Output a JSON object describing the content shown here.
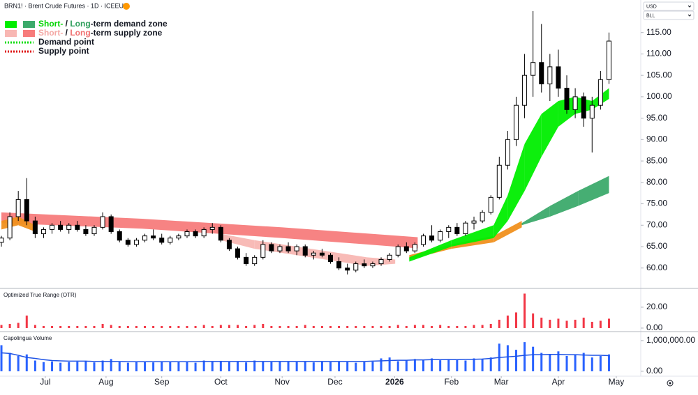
{
  "header": {
    "symbol_line": "BRN1! · Brent Crude Futures · 1D · ICEEUR",
    "currency": "USD",
    "unit": "BLL"
  },
  "chart_data": [
    {
      "type": "candlestick",
      "up_color": "#ffffff",
      "down_color": "#000000",
      "legend": [
        {
          "parts": [
            {
              "text": "Short-",
              "color": "#00d400"
            },
            {
              "text": " / "
            },
            {
              "text": "Long",
              "color": "#2e9e5b"
            },
            {
              "text": "-term demand zone"
            }
          ],
          "swatches": [
            "#00ee00",
            "#3caa6b"
          ],
          "style": "box"
        },
        {
          "parts": [
            {
              "text": "Short-",
              "color": "#f4a8a4"
            },
            {
              "text": " / "
            },
            {
              "text": "Long",
              "color": "#f07070"
            },
            {
              "text": "-term supply zone"
            }
          ],
          "swatches": [
            "#f8b7b3",
            "#f77c7c"
          ],
          "style": "box"
        },
        {
          "parts": [
            {
              "text": "Demand point"
            }
          ],
          "swatches": [
            "#00dd00"
          ],
          "style": "dotted"
        },
        {
          "parts": [
            {
              "text": "Supply point"
            }
          ],
          "swatches": [
            "#dd0000"
          ],
          "style": "dotted"
        }
      ],
      "x": [
        0,
        3,
        6,
        9,
        12,
        15,
        18,
        21,
        24,
        27,
        30,
        33,
        36,
        39,
        42,
        45,
        48,
        51,
        54,
        57,
        60,
        63,
        66,
        69,
        72,
        75,
        78,
        81,
        84,
        87,
        90,
        93,
        96,
        99,
        102,
        105,
        108,
        111,
        114,
        117,
        120,
        123,
        126,
        129,
        132,
        135,
        138,
        141,
        144,
        147,
        150,
        153,
        156,
        159,
        162,
        165,
        168,
        171,
        174,
        177,
        180,
        183,
        186,
        189,
        192,
        195,
        198,
        201,
        204,
        207,
        210,
        213,
        216
      ],
      "ohlc": [
        [
          66,
          67.5,
          65,
          67
        ],
        [
          67,
          73,
          66.5,
          72
        ],
        [
          72,
          78,
          71,
          76
        ],
        [
          76,
          81,
          70,
          71
        ],
        [
          71,
          72,
          67,
          68
        ],
        [
          68,
          69.5,
          67,
          69
        ],
        [
          69,
          70.5,
          68,
          70
        ],
        [
          70,
          71,
          68.5,
          69
        ],
        [
          69,
          70.5,
          68,
          70
        ],
        [
          70,
          71,
          68.5,
          69
        ],
        [
          69,
          70,
          67.5,
          68
        ],
        [
          68,
          70,
          67.5,
          69.5
        ],
        [
          69.5,
          73,
          69,
          72
        ],
        [
          72,
          72.5,
          68,
          68.5
        ],
        [
          68.5,
          69,
          66,
          66.5
        ],
        [
          66.5,
          67,
          65,
          65.5
        ],
        [
          65.5,
          67,
          65,
          66.5
        ],
        [
          66.5,
          68,
          66,
          67.5
        ],
        [
          67.5,
          69,
          66.5,
          67
        ],
        [
          67,
          68,
          65.5,
          66
        ],
        [
          66,
          67.5,
          65.5,
          67
        ],
        [
          67,
          68,
          66.5,
          67.5
        ],
        [
          67.5,
          69,
          67,
          68.5
        ],
        [
          68.5,
          69,
          67,
          67.5
        ],
        [
          67.5,
          69.5,
          67,
          69
        ],
        [
          69,
          70.5,
          68,
          69.5
        ],
        [
          69.5,
          70,
          66,
          66.5
        ],
        [
          66.5,
          67,
          64,
          64.5
        ],
        [
          64.5,
          65,
          62,
          62.5
        ],
        [
          62.5,
          63.5,
          60.5,
          61
        ],
        [
          61,
          63,
          60.5,
          62.5
        ],
        [
          62.5,
          66.5,
          62,
          65.5
        ],
        [
          65.5,
          66,
          63.5,
          64
        ],
        [
          64,
          65.5,
          63.5,
          65
        ],
        [
          65,
          66,
          63.5,
          64
        ],
        [
          64,
          65.5,
          63,
          65
        ],
        [
          65,
          65.5,
          62.5,
          63
        ],
        [
          63,
          64,
          62,
          63.5
        ],
        [
          63.5,
          64.5,
          62.5,
          63
        ],
        [
          63,
          63.5,
          61,
          61.5
        ],
        [
          61.5,
          62.5,
          59.5,
          60
        ],
        [
          60,
          61,
          58.5,
          59.5
        ],
        [
          59.5,
          61.5,
          59,
          61
        ],
        [
          61,
          62,
          60,
          60.5
        ],
        [
          60.5,
          61.5,
          60,
          61
        ],
        [
          61,
          62.5,
          60.5,
          62
        ],
        [
          62,
          63.5,
          61.5,
          63
        ],
        [
          63,
          65.5,
          62.5,
          65
        ],
        [
          65,
          66,
          63.5,
          64
        ],
        [
          64,
          66,
          63.5,
          65.5
        ],
        [
          65.5,
          68,
          65,
          67.5
        ],
        [
          67.5,
          70,
          66,
          66.5
        ],
        [
          66.5,
          69,
          66,
          68.5
        ],
        [
          68.5,
          70,
          67,
          69.5
        ],
        [
          69.5,
          70.5,
          67.5,
          68
        ],
        [
          68,
          71,
          67.5,
          70.5
        ],
        [
          70.5,
          72,
          69,
          71
        ],
        [
          71,
          73.5,
          70.5,
          73
        ],
        [
          73,
          77,
          72.5,
          76.5
        ],
        [
          76.5,
          86,
          76,
          84
        ],
        [
          84,
          92,
          83,
          90
        ],
        [
          90,
          100,
          88.5,
          98
        ],
        [
          98,
          110,
          95,
          105
        ],
        [
          105,
          120,
          100,
          108
        ],
        [
          108,
          117,
          101,
          103
        ],
        [
          103,
          110,
          99,
          107
        ],
        [
          107,
          111,
          100,
          102
        ],
        [
          102,
          105,
          96,
          97
        ],
        [
          97,
          102,
          95,
          100
        ],
        [
          100,
          101,
          93,
          95
        ],
        [
          95,
          100,
          87,
          98
        ],
        [
          98,
          106,
          97,
          104
        ],
        [
          104,
          115,
          103,
          113
        ]
      ],
      "zones": [
        {
          "color": "#f77c7c",
          "x": [
            0,
            50,
            100,
            148
          ],
          "lower": [
            70.5,
            69.2,
            67,
            64.6
          ],
          "upper": [
            73,
            71.5,
            69.5,
            67.2
          ]
        },
        {
          "color": "#f8b7b3",
          "x": [
            78,
            90,
            110,
            130,
            140
          ],
          "lower": [
            66.5,
            64.5,
            62.5,
            60.5,
            61
          ],
          "upper": [
            68,
            66.5,
            64.5,
            62.5,
            62
          ]
        },
        {
          "color": "#f0901e",
          "x": [
            0,
            6,
            12
          ],
          "lower": [
            69,
            70,
            68.5
          ],
          "upper": [
            71,
            72,
            70
          ]
        },
        {
          "color": "#f0901e",
          "x": [
            145,
            160,
            175,
            185
          ],
          "lower": [
            62,
            64.5,
            66,
            69.5
          ],
          "upper": [
            63,
            65.5,
            67.5,
            71
          ]
        },
        {
          "color": "#00ee00",
          "x": [
            145,
            160,
            175,
            180,
            186,
            192,
            198,
            204,
            210,
            216
          ],
          "lower": [
            61.5,
            65,
            67,
            71,
            78,
            86,
            93,
            96,
            97,
            99.5
          ],
          "upper": [
            62.5,
            66.5,
            70,
            77,
            89,
            96,
            99,
            100,
            99,
            102
          ]
        },
        {
          "color": "#3caa6b",
          "x": [
            185,
            195,
            205,
            216
          ],
          "lower": [
            70,
            72,
            74.5,
            77.5
          ],
          "upper": [
            70.5,
            74.5,
            78,
            81.5
          ]
        }
      ],
      "xlim": [
        -0.5,
        227.3
      ],
      "xticks": [
        {
          "value": 15.6,
          "label": "Jul"
        },
        {
          "value": 37.2,
          "label": "Aug"
        },
        {
          "value": 57,
          "label": "Sep"
        },
        {
          "value": 78,
          "label": "Oct"
        },
        {
          "value": 99.8,
          "label": "Nov"
        },
        {
          "value": 118.6,
          "label": "Dec"
        },
        {
          "value": 139.8,
          "label": "2026"
        },
        {
          "value": 160,
          "label": "Feb"
        },
        {
          "value": 177.7,
          "label": "Mar"
        },
        {
          "value": 198,
          "label": "Apr"
        },
        {
          "value": 218.6,
          "label": "May"
        }
      ],
      "ylim": [
        55.4,
        122.6
      ],
      "yticks": [
        {
          "value": 60,
          "label": "60.00"
        },
        {
          "value": 65,
          "label": "65.00"
        },
        {
          "value": 70,
          "label": "70.00"
        },
        {
          "value": 75,
          "label": "75.00"
        },
        {
          "value": 80,
          "label": "80.00"
        },
        {
          "value": 85,
          "label": "85.00"
        },
        {
          "value": 90,
          "label": "90.00"
        },
        {
          "value": 95,
          "label": "95.00"
        },
        {
          "value": 100,
          "label": "100.00"
        },
        {
          "value": 105,
          "label": "105.00"
        },
        {
          "value": 110,
          "label": "110.00"
        },
        {
          "value": 115,
          "label": "115.00"
        }
      ]
    },
    {
      "type": "bar",
      "title": "Optimized True Range (OTR)",
      "color": "#f23645",
      "x": [
        0,
        3,
        6,
        9,
        12,
        15,
        18,
        21,
        24,
        27,
        30,
        33,
        36,
        39,
        42,
        45,
        48,
        51,
        54,
        57,
        60,
        63,
        66,
        69,
        72,
        75,
        78,
        81,
        84,
        87,
        90,
        93,
        96,
        99,
        102,
        105,
        108,
        111,
        114,
        117,
        120,
        123,
        126,
        129,
        132,
        135,
        138,
        141,
        144,
        147,
        150,
        153,
        156,
        159,
        162,
        165,
        168,
        171,
        174,
        177,
        180,
        183,
        186,
        189,
        192,
        195,
        198,
        201,
        204,
        207,
        210,
        213,
        216
      ],
      "values": [
        3,
        4,
        5,
        12,
        3,
        2,
        2,
        2,
        2,
        2,
        2,
        2,
        4,
        3,
        2,
        2,
        2,
        2,
        2,
        2,
        2,
        2,
        2,
        2,
        3,
        2,
        3,
        3,
        3,
        2,
        3,
        4,
        2,
        2,
        2,
        2,
        3,
        2,
        2,
        2,
        2,
        2,
        2,
        2,
        2,
        2,
        2,
        3,
        2,
        3,
        3,
        2,
        3,
        2,
        2,
        2,
        3,
        3,
        4,
        8,
        12,
        15,
        33,
        14,
        10,
        8,
        9,
        7,
        8,
        10,
        6,
        7,
        9
      ],
      "xlim": [
        -0.5,
        227.3
      ],
      "ylim": [
        -2.7,
        37.3
      ],
      "yticks": [
        {
          "value": 0,
          "label": "0.00"
        },
        {
          "value": 20,
          "label": "20.00"
        }
      ]
    },
    {
      "type": "bar",
      "title": "Capolingua Volume",
      "color": "#2962ff",
      "line_color": "#1e53e5",
      "x": [
        0,
        3,
        6,
        9,
        12,
        15,
        18,
        21,
        24,
        27,
        30,
        33,
        36,
        39,
        42,
        45,
        48,
        51,
        54,
        57,
        60,
        63,
        66,
        69,
        72,
        75,
        78,
        81,
        84,
        87,
        90,
        93,
        96,
        99,
        102,
        105,
        108,
        111,
        114,
        117,
        120,
        123,
        126,
        129,
        132,
        135,
        138,
        141,
        144,
        147,
        150,
        153,
        156,
        159,
        162,
        165,
        168,
        171,
        174,
        177,
        180,
        183,
        186,
        189,
        192,
        195,
        198,
        201,
        204,
        207,
        210,
        213,
        216
      ],
      "values": [
        850000,
        600000,
        500000,
        550000,
        350000,
        300000,
        320000,
        280000,
        300000,
        310000,
        330000,
        290000,
        350000,
        400000,
        300000,
        280000,
        310000,
        300000,
        290000,
        330000,
        320000,
        300000,
        310000,
        280000,
        350000,
        330000,
        340000,
        300000,
        320000,
        290000,
        350000,
        310000,
        300000,
        330000,
        320000,
        300000,
        310000,
        290000,
        320000,
        300000,
        310000,
        300000,
        280000,
        300000,
        310000,
        420000,
        450000,
        330000,
        350000,
        400000,
        380000,
        420000,
        360000,
        400000,
        380000,
        350000,
        420000,
        400000,
        450000,
        900000,
        850000,
        700000,
        950000,
        800000,
        600000,
        550000,
        650000,
        500000,
        550000,
        600000,
        450000,
        500000,
        550000
      ],
      "line_values": [
        600000,
        580000,
        520000,
        450000,
        420000,
        380000,
        350000,
        340000,
        330000,
        330000,
        330000,
        320000,
        320000,
        320000,
        320000,
        310000,
        310000,
        310000,
        310000,
        310000,
        310000,
        310000,
        310000,
        310000,
        320000,
        320000,
        320000,
        320000,
        320000,
        320000,
        320000,
        320000,
        320000,
        320000,
        320000,
        320000,
        320000,
        320000,
        320000,
        320000,
        320000,
        320000,
        320000,
        320000,
        330000,
        340000,
        350000,
        360000,
        360000,
        370000,
        370000,
        380000,
        380000,
        380000,
        380000,
        390000,
        390000,
        400000,
        420000,
        450000,
        470000,
        490000,
        520000,
        540000,
        540000,
        550000,
        550000,
        540000,
        540000,
        530000,
        520000,
        520000,
        510000
      ],
      "xlim": [
        -0.5,
        227.3
      ],
      "ylim": [
        -160000,
        1270000
      ],
      "yticks": [
        {
          "value": 0,
          "label": "0.00"
        },
        {
          "value": 1000000,
          "label": "1,000,000.00"
        }
      ]
    }
  ]
}
